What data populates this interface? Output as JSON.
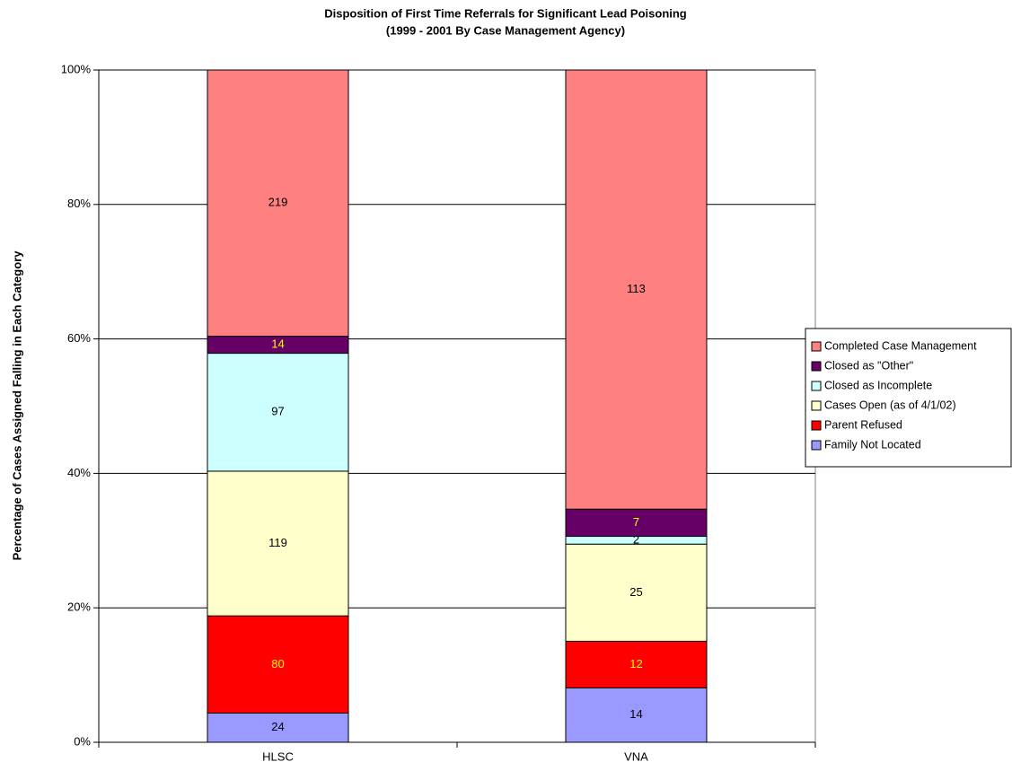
{
  "chart_data": {
    "type": "percent_stacked_bar",
    "title": "Disposition of First Time Referrals for Significant Lead Poisoning",
    "subtitle": "(1999 - 2001 By Case Management Agency)",
    "y_label": "Percentage of Cases Assigned Falling in Each Category",
    "categories": [
      "HLSC",
      "VNA"
    ],
    "series": [
      {
        "name": "Family Not Located",
        "color": "#9999ff",
        "label_color": "#000000",
        "values": [
          24,
          14
        ]
      },
      {
        "name": "Parent Refused",
        "color": "#ff0000",
        "label_color": "#ffff00",
        "values": [
          80,
          12
        ]
      },
      {
        "name": "Cases Open (as of 4/1/02)",
        "color": "#ffffcc",
        "label_color": "#000000",
        "values": [
          119,
          25
        ]
      },
      {
        "name": "Closed as Incomplete",
        "color": "#ccffff",
        "label_color": "#000000",
        "values": [
          97,
          2
        ]
      },
      {
        "name": "Closed as \"Other\"",
        "color": "#660066",
        "label_color": "#ffff00",
        "values": [
          14,
          7
        ]
      },
      {
        "name": "Completed Case Management",
        "color": "#ff8080",
        "label_color": "#000000",
        "values": [
          219,
          113
        ]
      }
    ],
    "ylim": [
      0,
      100
    ],
    "yticks": [
      {
        "value": 0,
        "label": "0%"
      },
      {
        "value": 20,
        "label": "20%"
      },
      {
        "value": 40,
        "label": "40%"
      },
      {
        "value": 60,
        "label": "60%"
      },
      {
        "value": 80,
        "label": "80%"
      },
      {
        "value": 100,
        "label": "100%"
      }
    ],
    "grid": true,
    "legend": "right"
  }
}
